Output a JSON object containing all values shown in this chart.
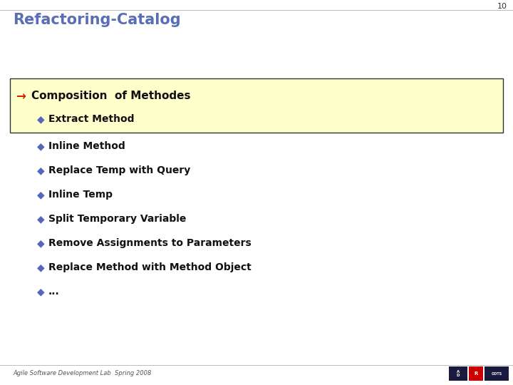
{
  "title": "Refactoring-Catalog",
  "slide_number": "10",
  "title_color": "#5b6db5",
  "background_color": "#ffffff",
  "highlighted_box_bg": "#ffffcc",
  "highlighted_box_border": "#333333",
  "arrow_color": "#cc2200",
  "bullet_color": "#5566bb",
  "text_color": "#111111",
  "footer_text": "Agile Software Development Lab  Spring 2008",
  "header_item": "Composition  of Methodes",
  "highlighted_item": "Extract Method",
  "items": [
    "Inline Method",
    "Replace Temp with Query",
    "Inline Temp",
    "Split Temporary Variable",
    "Remove Assignments to Parameters",
    "Replace Method with Method Object",
    "..."
  ],
  "title_fontsize": 15,
  "header_fontsize": 11,
  "item_fontsize": 10,
  "footer_fontsize": 6,
  "slide_number_fontsize": 8
}
